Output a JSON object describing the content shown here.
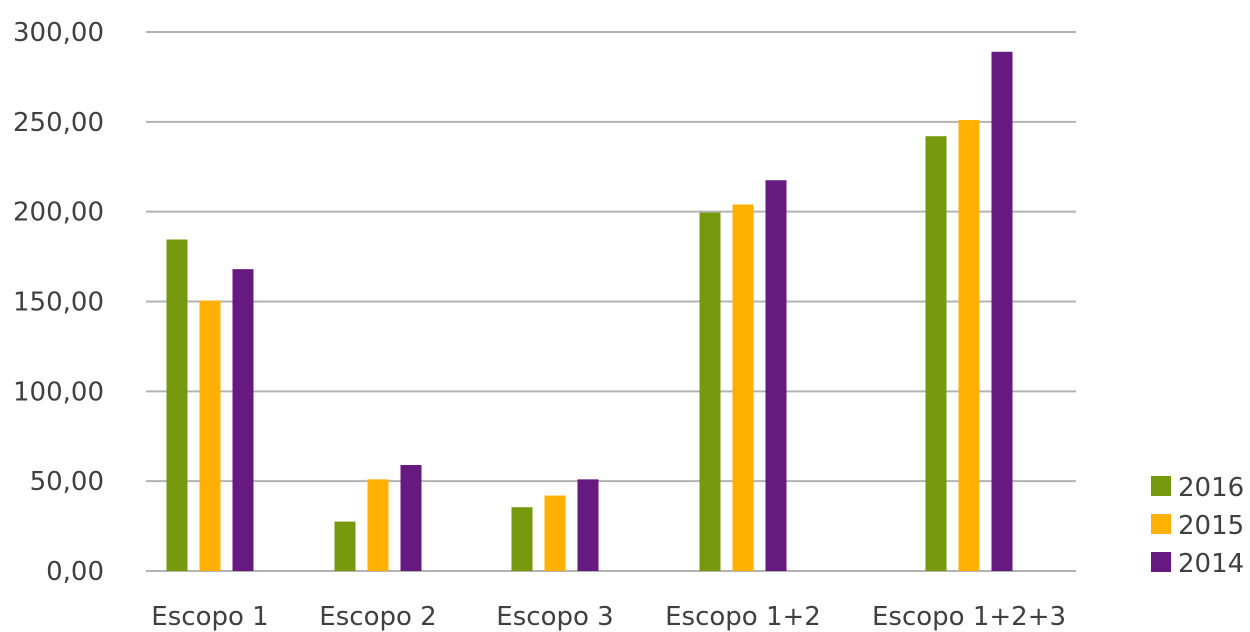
{
  "chart_data": {
    "type": "bar",
    "title": "",
    "xlabel": "",
    "ylabel": "",
    "categories": [
      "Escopo 1",
      "Escopo 2",
      "Escopo 3",
      "Escopo 1+2",
      "Escopo 1+2+3"
    ],
    "series": [
      {
        "name": "2016",
        "color": "#77990D",
        "values": [
          184.5,
          27.5,
          35.5,
          199.5,
          242.0
        ]
      },
      {
        "name": "2015",
        "color": "#FFB000",
        "values": [
          150.5,
          51.0,
          42.0,
          204.0,
          251.0
        ]
      },
      {
        "name": "2014",
        "color": "#661A80",
        "values": [
          168.0,
          59.0,
          51.0,
          217.5,
          289.0
        ]
      }
    ],
    "ylim": [
      0,
      300
    ],
    "y_ticks": [
      0,
      50,
      100,
      150,
      200,
      250,
      300
    ],
    "y_tick_labels": [
      "0,00",
      "50,00",
      "100,00",
      "150,00",
      "200,00",
      "250,00",
      "300,00"
    ],
    "grid": true,
    "legend_position": "right-bottom"
  }
}
